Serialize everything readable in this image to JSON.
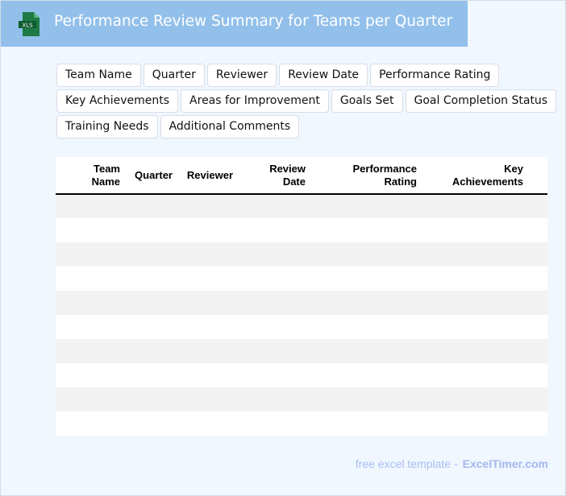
{
  "header": {
    "title": "Performance Review Summary for Teams per Quarter",
    "icon": "xls-file-icon",
    "icon_label": "XLS",
    "bg_color": "#92c0eb"
  },
  "chips": [
    [
      "Team Name",
      "Quarter",
      "Reviewer",
      "Review Date",
      "Performance Rating"
    ],
    [
      "Key Achievements",
      "Areas for Improvement",
      "Goals Set",
      "Goal Completion Status"
    ],
    [
      "Training Needs",
      "Additional Comments"
    ]
  ],
  "table": {
    "columns": [
      [
        "Team",
        "Name"
      ],
      [
        "Quarter"
      ],
      [
        "Reviewer"
      ],
      [
        "Review",
        "Date"
      ],
      [
        "Performance",
        "Rating"
      ],
      [
        "Key",
        "Achievements"
      ]
    ],
    "row_count": 10
  },
  "footer": {
    "text": "free excel template -",
    "brand": "ExcelTimer.com"
  }
}
